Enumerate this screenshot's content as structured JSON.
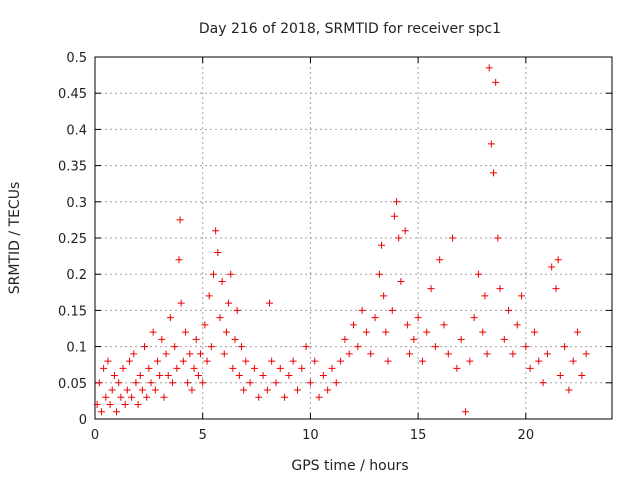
{
  "chart_data": {
    "type": "scatter",
    "title": "Day 216 of 2018, SRMTID for receiver spc1",
    "xlabel": "GPS time / hours",
    "ylabel": "SRMTID / TECUs",
    "xlim": [
      0,
      24
    ],
    "ylim": [
      0,
      0.5
    ],
    "grid": true,
    "marker": "+",
    "marker_color": "#ee0000",
    "xticks": [
      0,
      5,
      10,
      15,
      20
    ],
    "xtick_labels": [
      "0",
      "5",
      "10",
      "15",
      "20"
    ],
    "yticks": [
      0,
      0.05,
      0.1,
      0.15,
      0.2,
      0.25,
      0.3,
      0.35,
      0.4,
      0.45,
      0.5
    ],
    "ytick_labels": [
      "0",
      "0.05",
      "0.1",
      "0.15",
      "0.2",
      "0.25",
      "0.3",
      "0.35",
      "0.4",
      "0.45",
      "0.5"
    ],
    "series": [
      {
        "name": "SRMTID",
        "points": [
          [
            0.1,
            0.02
          ],
          [
            0.2,
            0.05
          ],
          [
            0.3,
            0.01
          ],
          [
            0.4,
            0.07
          ],
          [
            0.5,
            0.03
          ],
          [
            0.6,
            0.08
          ],
          [
            0.7,
            0.02
          ],
          [
            0.8,
            0.04
          ],
          [
            0.9,
            0.06
          ],
          [
            1.0,
            0.01
          ],
          [
            1.1,
            0.05
          ],
          [
            1.2,
            0.03
          ],
          [
            1.3,
            0.07
          ],
          [
            1.4,
            0.02
          ],
          [
            1.5,
            0.04
          ],
          [
            1.6,
            0.08
          ],
          [
            1.7,
            0.03
          ],
          [
            1.8,
            0.09
          ],
          [
            1.9,
            0.05
          ],
          [
            2.0,
            0.02
          ],
          [
            2.1,
            0.06
          ],
          [
            2.2,
            0.04
          ],
          [
            2.3,
            0.1
          ],
          [
            2.4,
            0.03
          ],
          [
            2.5,
            0.07
          ],
          [
            2.6,
            0.05
          ],
          [
            2.7,
            0.12
          ],
          [
            2.8,
            0.04
          ],
          [
            2.9,
            0.08
          ],
          [
            3.0,
            0.06
          ],
          [
            3.1,
            0.11
          ],
          [
            3.2,
            0.03
          ],
          [
            3.3,
            0.09
          ],
          [
            3.4,
            0.06
          ],
          [
            3.5,
            0.14
          ],
          [
            3.6,
            0.05
          ],
          [
            3.7,
            0.1
          ],
          [
            3.8,
            0.07
          ],
          [
            3.9,
            0.22
          ],
          [
            3.95,
            0.275
          ],
          [
            4.0,
            0.16
          ],
          [
            4.1,
            0.08
          ],
          [
            4.2,
            0.12
          ],
          [
            4.3,
            0.05
          ],
          [
            4.4,
            0.09
          ],
          [
            4.5,
            0.04
          ],
          [
            4.6,
            0.07
          ],
          [
            4.7,
            0.11
          ],
          [
            4.8,
            0.06
          ],
          [
            4.9,
            0.09
          ],
          [
            5.0,
            0.05
          ],
          [
            5.1,
            0.13
          ],
          [
            5.2,
            0.08
          ],
          [
            5.3,
            0.17
          ],
          [
            5.4,
            0.1
          ],
          [
            5.5,
            0.2
          ],
          [
            5.6,
            0.26
          ],
          [
            5.7,
            0.23
          ],
          [
            5.8,
            0.14
          ],
          [
            5.9,
            0.19
          ],
          [
            6.0,
            0.09
          ],
          [
            6.1,
            0.12
          ],
          [
            6.2,
            0.16
          ],
          [
            6.3,
            0.2
          ],
          [
            6.4,
            0.07
          ],
          [
            6.5,
            0.11
          ],
          [
            6.6,
            0.15
          ],
          [
            6.7,
            0.06
          ],
          [
            6.8,
            0.1
          ],
          [
            6.9,
            0.04
          ],
          [
            7.0,
            0.08
          ],
          [
            7.2,
            0.05
          ],
          [
            7.4,
            0.07
          ],
          [
            7.6,
            0.03
          ],
          [
            7.8,
            0.06
          ],
          [
            8.0,
            0.04
          ],
          [
            8.1,
            0.16
          ],
          [
            8.2,
            0.08
          ],
          [
            8.4,
            0.05
          ],
          [
            8.6,
            0.07
          ],
          [
            8.8,
            0.03
          ],
          [
            9.0,
            0.06
          ],
          [
            9.2,
            0.08
          ],
          [
            9.4,
            0.04
          ],
          [
            9.6,
            0.07
          ],
          [
            9.8,
            0.1
          ],
          [
            10.0,
            0.05
          ],
          [
            10.2,
            0.08
          ],
          [
            10.4,
            0.03
          ],
          [
            10.6,
            0.06
          ],
          [
            10.8,
            0.04
          ],
          [
            11.0,
            0.07
          ],
          [
            11.2,
            0.05
          ],
          [
            11.4,
            0.08
          ],
          [
            11.6,
            0.11
          ],
          [
            11.8,
            0.09
          ],
          [
            12.0,
            0.13
          ],
          [
            12.2,
            0.1
          ],
          [
            12.4,
            0.15
          ],
          [
            12.6,
            0.12
          ],
          [
            12.8,
            0.09
          ],
          [
            13.0,
            0.14
          ],
          [
            13.2,
            0.2
          ],
          [
            13.3,
            0.24
          ],
          [
            13.4,
            0.17
          ],
          [
            13.5,
            0.12
          ],
          [
            13.6,
            0.08
          ],
          [
            13.8,
            0.15
          ],
          [
            13.9,
            0.28
          ],
          [
            14.0,
            0.3
          ],
          [
            14.1,
            0.25
          ],
          [
            14.2,
            0.19
          ],
          [
            14.4,
            0.26
          ],
          [
            14.5,
            0.13
          ],
          [
            14.6,
            0.09
          ],
          [
            14.8,
            0.11
          ],
          [
            15.0,
            0.14
          ],
          [
            15.2,
            0.08
          ],
          [
            15.4,
            0.12
          ],
          [
            15.6,
            0.18
          ],
          [
            15.8,
            0.1
          ],
          [
            16.0,
            0.22
          ],
          [
            16.2,
            0.13
          ],
          [
            16.4,
            0.09
          ],
          [
            16.6,
            0.25
          ],
          [
            16.8,
            0.07
          ],
          [
            17.0,
            0.11
          ],
          [
            17.2,
            0.01
          ],
          [
            17.4,
            0.08
          ],
          [
            17.6,
            0.14
          ],
          [
            17.8,
            0.2
          ],
          [
            18.0,
            0.12
          ],
          [
            18.1,
            0.17
          ],
          [
            18.2,
            0.09
          ],
          [
            18.3,
            0.485
          ],
          [
            18.4,
            0.38
          ],
          [
            18.5,
            0.34
          ],
          [
            18.6,
            0.465
          ],
          [
            18.7,
            0.25
          ],
          [
            18.8,
            0.18
          ],
          [
            19.0,
            0.11
          ],
          [
            19.2,
            0.15
          ],
          [
            19.4,
            0.09
          ],
          [
            19.6,
            0.13
          ],
          [
            19.8,
            0.17
          ],
          [
            20.0,
            0.1
          ],
          [
            20.2,
            0.07
          ],
          [
            20.4,
            0.12
          ],
          [
            20.6,
            0.08
          ],
          [
            20.8,
            0.05
          ],
          [
            21.0,
            0.09
          ],
          [
            21.2,
            0.21
          ],
          [
            21.4,
            0.18
          ],
          [
            21.5,
            0.22
          ],
          [
            21.6,
            0.06
          ],
          [
            21.8,
            0.1
          ],
          [
            22.0,
            0.04
          ],
          [
            22.2,
            0.08
          ],
          [
            22.4,
            0.12
          ],
          [
            22.6,
            0.06
          ],
          [
            22.8,
            0.09
          ]
        ]
      }
    ]
  }
}
